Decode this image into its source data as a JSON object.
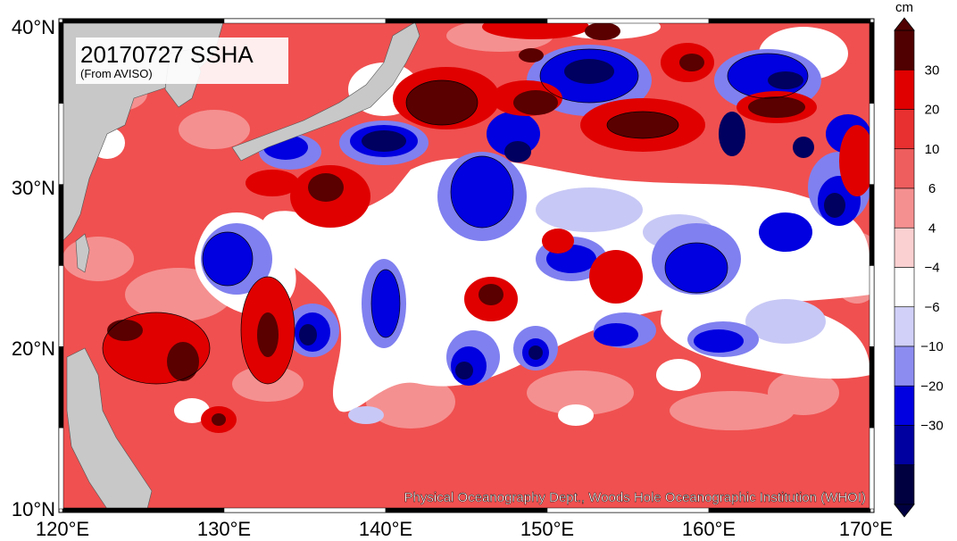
{
  "title": "20170727 SSHA",
  "subtitle": "(From AVISO)",
  "credit": "Physical Oceanography Dept., Woods Hole Oceanographic Institution (WHOI)",
  "x_axis": {
    "ticks": [
      "120°E",
      "130°E",
      "140°E",
      "150°E",
      "160°E",
      "170°E"
    ]
  },
  "y_axis": {
    "ticks": [
      "10°N",
      "20°N",
      "30°N",
      "40°N"
    ]
  },
  "colorbar": {
    "unit": "cm",
    "labels": [
      "30",
      "20",
      "10",
      "6",
      "4",
      "−4",
      "−6",
      "−10",
      "−20",
      "−30"
    ],
    "colors": [
      "#ffffff",
      "#500000",
      "#e00000",
      "#e83030",
      "#ee5e5e",
      "#f59090",
      "#fbd0d0",
      "#ffffff",
      "#d0d0f8",
      "#8c8cf0",
      "#0000e0",
      "#0000a0",
      "#000040"
    ],
    "arrow_top_color": "#500000",
    "arrow_bottom_color": "#000040"
  },
  "colors": {
    "land": "#c8c8c8",
    "ocean_base": "#f05050",
    "ocean_positive_strong": "#e00000",
    "ocean_positive_extreme": "#500000",
    "ocean_negative": "#0000e0",
    "ocean_negative_strong": "#000040",
    "ocean_neutral": "#ffffff",
    "ocean_light_pink": "#f59090"
  }
}
